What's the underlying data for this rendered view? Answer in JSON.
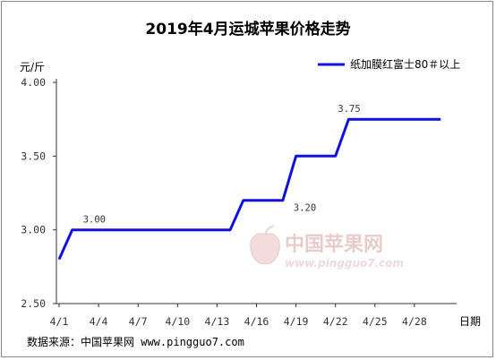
{
  "chart_data": {
    "type": "line",
    "title": "2019年4月运城苹果价格走势",
    "ylabel": "元/斤",
    "xlabel": "日期",
    "ylim": [
      2.5,
      4.0
    ],
    "yticks": [
      "2.50",
      "3.00",
      "3.50",
      "4.00"
    ],
    "xticks": [
      "4/1",
      "4/4",
      "4/7",
      "4/10",
      "4/13",
      "4/16",
      "4/19",
      "4/22",
      "4/25",
      "4/28"
    ],
    "legend": "top-right",
    "grid": false,
    "series": [
      {
        "name": "纸加膜红富士80＃以上",
        "color": "#1010e0",
        "x": [
          1,
          2,
          3,
          4,
          5,
          6,
          7,
          8,
          9,
          10,
          11,
          12,
          13,
          14,
          15,
          16,
          17,
          18,
          19,
          20,
          21,
          22,
          23,
          24,
          25,
          26,
          27,
          28,
          29,
          30
        ],
        "values": [
          2.8,
          3.0,
          3.0,
          3.0,
          3.0,
          3.0,
          3.0,
          3.0,
          3.0,
          3.0,
          3.0,
          3.0,
          3.0,
          3.0,
          3.2,
          3.2,
          3.2,
          3.2,
          3.5,
          3.5,
          3.5,
          3.5,
          3.75,
          3.75,
          3.75,
          3.75,
          3.75,
          3.75,
          3.75,
          3.75
        ]
      }
    ],
    "annotations": [
      {
        "x": 2,
        "y": 3.0,
        "text": "3.00"
      },
      {
        "x": 18,
        "y": 3.2,
        "text": "3.20"
      },
      {
        "x": 23,
        "y": 3.75,
        "text": "3.75"
      }
    ]
  },
  "watermark": {
    "cn": "中国苹果网",
    "en": "www.pingguo7.com"
  },
  "source": "数据来源：中国苹果网 www.pingguo7.com"
}
